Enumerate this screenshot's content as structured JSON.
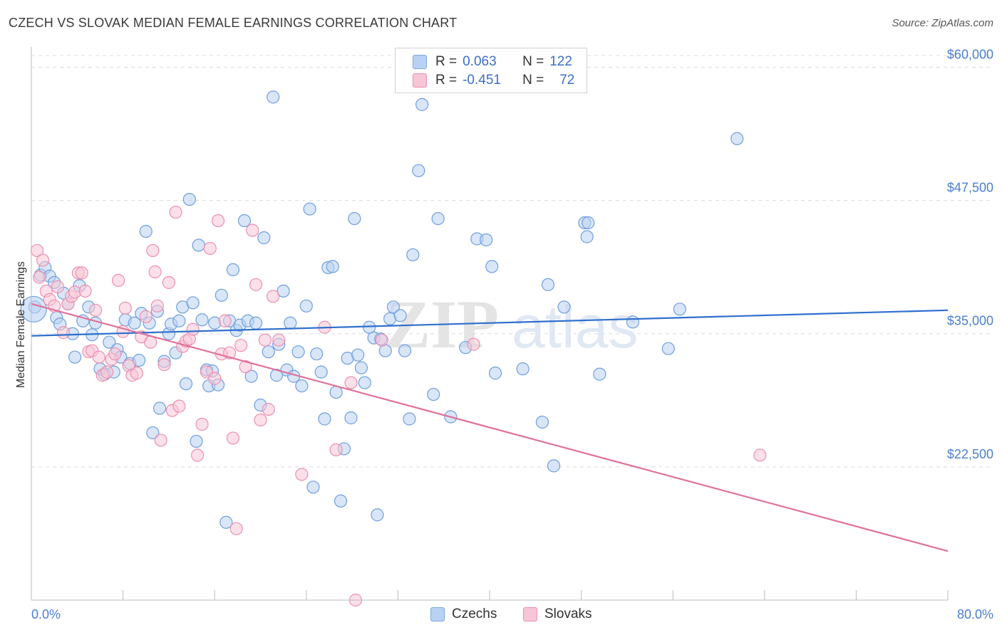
{
  "header": {
    "title": "CZECH VS SLOVAK MEDIAN FEMALE EARNINGS CORRELATION CHART",
    "source": "Source: ZipAtlas.com"
  },
  "watermark": {
    "zip": "ZIP",
    "atlas": "atlas"
  },
  "legend": {
    "rows": [
      {
        "r_label": "R =",
        "r_value": "0.063",
        "n_label": "N =",
        "n_value": "122",
        "color": "#7ba7e0",
        "fill": "#b9d2f3"
      },
      {
        "r_label": "R =",
        "r_value": "-0.451",
        "n_label": "N =",
        "n_value": "72",
        "color": "#ec8fb0",
        "fill": "#f7c6d6"
      }
    ]
  },
  "bottom_legend": {
    "czechs": "Czechs",
    "slovaks": "Slovaks"
  },
  "chart_data": {
    "type": "scatter",
    "title": "CZECH VS SLOVAK MEDIAN FEMALE EARNINGS CORRELATION CHART",
    "xlabel": "",
    "ylabel": "Median Female Earnings",
    "xlim": [
      0,
      80
    ],
    "ylim": [
      10000,
      61500
    ],
    "x_tick_labels": [
      "0.0%",
      "80.0%"
    ],
    "y_ticks": [
      {
        "value": 22500,
        "label": "$22,500"
      },
      {
        "value": 35000,
        "label": "$35,000"
      },
      {
        "value": 47500,
        "label": "$47,500"
      },
      {
        "value": 60000,
        "label": "$60,000"
      }
    ],
    "series": [
      {
        "name": "Czechs",
        "color": "#6f9fdd",
        "fill": "#b9d2f3",
        "trend": {
          "x0": 0,
          "y0": 34800,
          "x1": 80,
          "y1": 37200,
          "color": "#2f6fcf"
        },
        "points": [
          [
            0.3,
            37500
          ],
          [
            0.8,
            40500
          ],
          [
            1.2,
            41200
          ],
          [
            1.6,
            40400
          ],
          [
            2.0,
            39800
          ],
          [
            2.2,
            36500
          ],
          [
            2.5,
            35900
          ],
          [
            2.8,
            38800
          ],
          [
            3.2,
            37800
          ],
          [
            3.6,
            35000
          ],
          [
            3.8,
            32800
          ],
          [
            4.2,
            39500
          ],
          [
            4.5,
            36200
          ],
          [
            5.0,
            37500
          ],
          [
            5.3,
            34900
          ],
          [
            5.6,
            36000
          ],
          [
            6.0,
            31700
          ],
          [
            6.4,
            31200
          ],
          [
            6.8,
            34200
          ],
          [
            7.2,
            31400
          ],
          [
            7.5,
            33500
          ],
          [
            7.8,
            32800
          ],
          [
            8.2,
            36300
          ],
          [
            8.6,
            32200
          ],
          [
            9.0,
            36000
          ],
          [
            9.4,
            32500
          ],
          [
            9.6,
            36900
          ],
          [
            10.0,
            44600
          ],
          [
            10.3,
            36000
          ],
          [
            10.6,
            25700
          ],
          [
            11.0,
            37100
          ],
          [
            11.2,
            28000
          ],
          [
            11.6,
            32400
          ],
          [
            12.0,
            35000
          ],
          [
            12.2,
            35900
          ],
          [
            12.6,
            33200
          ],
          [
            12.9,
            36200
          ],
          [
            13.2,
            37500
          ],
          [
            13.5,
            30300
          ],
          [
            13.8,
            47600
          ],
          [
            14.1,
            37900
          ],
          [
            14.4,
            24900
          ],
          [
            14.6,
            43300
          ],
          [
            14.9,
            36300
          ],
          [
            15.3,
            31600
          ],
          [
            15.5,
            30100
          ],
          [
            15.8,
            31500
          ],
          [
            16.0,
            36000
          ],
          [
            16.3,
            30200
          ],
          [
            16.6,
            38600
          ],
          [
            17.0,
            17300
          ],
          [
            17.3,
            36200
          ],
          [
            17.6,
            41000
          ],
          [
            17.9,
            35300
          ],
          [
            18.2,
            35800
          ],
          [
            18.6,
            45600
          ],
          [
            18.9,
            36200
          ],
          [
            19.2,
            31000
          ],
          [
            19.6,
            36000
          ],
          [
            20.0,
            28300
          ],
          [
            20.3,
            44000
          ],
          [
            20.7,
            33300
          ],
          [
            21.1,
            57200
          ],
          [
            21.4,
            31100
          ],
          [
            21.6,
            34000
          ],
          [
            22.0,
            39000
          ],
          [
            22.3,
            31600
          ],
          [
            22.6,
            36000
          ],
          [
            22.9,
            31000
          ],
          [
            23.3,
            33300
          ],
          [
            23.6,
            30100
          ],
          [
            24.0,
            37600
          ],
          [
            24.3,
            46700
          ],
          [
            24.6,
            20600
          ],
          [
            24.9,
            33100
          ],
          [
            25.3,
            31400
          ],
          [
            25.6,
            27000
          ],
          [
            25.9,
            41200
          ],
          [
            26.3,
            41300
          ],
          [
            26.6,
            29500
          ],
          [
            27.0,
            19300
          ],
          [
            27.3,
            24200
          ],
          [
            27.6,
            32700
          ],
          [
            27.9,
            27100
          ],
          [
            28.2,
            45800
          ],
          [
            28.5,
            33000
          ],
          [
            28.8,
            31800
          ],
          [
            29.1,
            30400
          ],
          [
            29.5,
            35600
          ],
          [
            29.9,
            34600
          ],
          [
            30.2,
            18000
          ],
          [
            30.5,
            34500
          ],
          [
            30.9,
            33400
          ],
          [
            31.3,
            36400
          ],
          [
            31.6,
            37500
          ],
          [
            32.2,
            36700
          ],
          [
            32.6,
            33400
          ],
          [
            33.0,
            27000
          ],
          [
            33.3,
            42400
          ],
          [
            33.8,
            50300
          ],
          [
            34.1,
            56500
          ],
          [
            35.1,
            29300
          ],
          [
            35.5,
            45800
          ],
          [
            36.6,
            27200
          ],
          [
            37.9,
            33700
          ],
          [
            38.9,
            43900
          ],
          [
            39.7,
            43800
          ],
          [
            40.2,
            41300
          ],
          [
            40.5,
            31300
          ],
          [
            42.9,
            31700
          ],
          [
            44.6,
            26700
          ],
          [
            45.1,
            39600
          ],
          [
            45.6,
            22600
          ],
          [
            46.5,
            37500
          ],
          [
            48.3,
            45400
          ],
          [
            48.5,
            44100
          ],
          [
            48.6,
            45400
          ],
          [
            49.6,
            31200
          ],
          [
            52.5,
            36100
          ],
          [
            55.6,
            33600
          ],
          [
            56.6,
            37300
          ],
          [
            61.6,
            53300
          ]
        ]
      },
      {
        "name": "Slovaks",
        "color": "#ec8fb0",
        "fill": "#f7c6d6",
        "trend": {
          "x0": 0,
          "y0": 37800,
          "x1": 80,
          "y1": 14600,
          "color": "#e0719a"
        },
        "points": [
          [
            0.5,
            42800
          ],
          [
            0.7,
            40300
          ],
          [
            1.0,
            41900
          ],
          [
            1.3,
            39000
          ],
          [
            1.6,
            38200
          ],
          [
            2.0,
            37600
          ],
          [
            2.3,
            39400
          ],
          [
            2.8,
            35100
          ],
          [
            3.2,
            37800
          ],
          [
            3.5,
            38500
          ],
          [
            3.8,
            38900
          ],
          [
            4.1,
            40700
          ],
          [
            4.4,
            40700
          ],
          [
            4.7,
            39000
          ],
          [
            5.0,
            33300
          ],
          [
            5.3,
            33400
          ],
          [
            5.6,
            37200
          ],
          [
            5.9,
            32800
          ],
          [
            6.2,
            31100
          ],
          [
            6.6,
            31400
          ],
          [
            7.0,
            32600
          ],
          [
            7.3,
            33100
          ],
          [
            7.6,
            40000
          ],
          [
            8.0,
            35200
          ],
          [
            8.2,
            37400
          ],
          [
            8.5,
            32000
          ],
          [
            8.8,
            31100
          ],
          [
            9.2,
            31300
          ],
          [
            9.6,
            34700
          ],
          [
            10.0,
            36600
          ],
          [
            10.4,
            34200
          ],
          [
            10.6,
            42800
          ],
          [
            10.8,
            40800
          ],
          [
            11.0,
            37600
          ],
          [
            11.3,
            25000
          ],
          [
            11.6,
            32100
          ],
          [
            12.0,
            39800
          ],
          [
            12.3,
            27800
          ],
          [
            12.6,
            46400
          ],
          [
            12.9,
            28200
          ],
          [
            13.2,
            33800
          ],
          [
            13.5,
            34300
          ],
          [
            13.8,
            34500
          ],
          [
            14.1,
            35400
          ],
          [
            14.5,
            23600
          ],
          [
            14.9,
            26500
          ],
          [
            15.3,
            31400
          ],
          [
            15.6,
            43000
          ],
          [
            16.0,
            30800
          ],
          [
            16.3,
            45600
          ],
          [
            16.6,
            33100
          ],
          [
            16.9,
            36200
          ],
          [
            17.3,
            33200
          ],
          [
            17.6,
            25200
          ],
          [
            17.9,
            16700
          ],
          [
            18.3,
            33900
          ],
          [
            18.7,
            31900
          ],
          [
            19.3,
            44700
          ],
          [
            19.6,
            39600
          ],
          [
            20.0,
            26900
          ],
          [
            20.4,
            34400
          ],
          [
            20.7,
            27900
          ],
          [
            21.1,
            38500
          ],
          [
            21.6,
            34400
          ],
          [
            23.6,
            21800
          ],
          [
            25.6,
            35600
          ],
          [
            26.6,
            24100
          ],
          [
            27.9,
            30400
          ],
          [
            28.3,
            10000
          ],
          [
            30.6,
            34400
          ],
          [
            38.6,
            34000
          ],
          [
            63.6,
            23600
          ]
        ]
      }
    ]
  }
}
